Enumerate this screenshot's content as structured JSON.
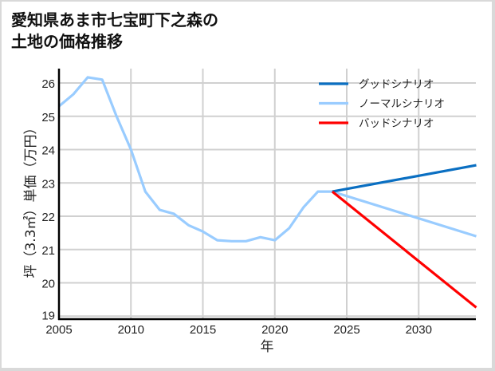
{
  "title": "愛知県あま市七宝町下之森の\n土地の価格推移",
  "chart_data": {
    "type": "line",
    "title": "愛知県あま市七宝町下之森の土地の価格推移",
    "xlabel": "年",
    "ylabel": "坪（3.3㎡）単価（万円）",
    "xlim": [
      2005,
      2034
    ],
    "ylim": [
      19,
      26.5
    ],
    "x_ticks": [
      2005,
      2010,
      2015,
      2020,
      2025,
      2030
    ],
    "y_ticks": [
      19,
      20,
      21,
      22,
      23,
      24,
      25,
      26
    ],
    "grid": true,
    "legend_position": "upper right",
    "series": [
      {
        "name": "グッドシナリオ",
        "color": "#0a6fc2",
        "x": [
          2024,
          2034
        ],
        "values": [
          22.74,
          23.53
        ]
      },
      {
        "name": "ノーマルシナリオ",
        "color": "#99ccff",
        "x": [
          2005,
          2006,
          2007,
          2008,
          2009,
          2010,
          2011,
          2012,
          2013,
          2014,
          2015,
          2016,
          2017,
          2018,
          2019,
          2020,
          2021,
          2022,
          2023,
          2024,
          2034
        ],
        "values": [
          25.3,
          25.66,
          26.17,
          26.1,
          25.0,
          24.0,
          22.74,
          22.19,
          22.07,
          21.73,
          21.54,
          21.28,
          21.25,
          21.25,
          21.37,
          21.28,
          21.64,
          22.27,
          22.74,
          22.74,
          21.4
        ]
      },
      {
        "name": "バッドシナリオ",
        "color": "#ff0000",
        "x": [
          2024,
          2034
        ],
        "values": [
          22.74,
          19.26
        ]
      }
    ]
  }
}
